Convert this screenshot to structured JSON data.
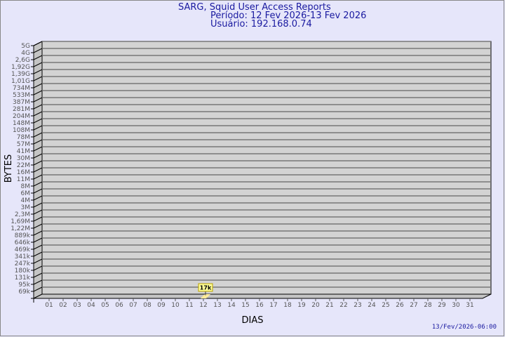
{
  "title": {
    "line1": "SARG, Squid User Access Reports",
    "line2": "Período: 12 Fev 2026-13 Fev 2026",
    "line3": "Usuário: 192.168.0.74"
  },
  "footer": "13/Fev/2026-06:00",
  "colors": {
    "background": "#e6e6fa",
    "plot": "#d3d3d3",
    "bar": "#ffeb99",
    "label_box": "#ffff99",
    "title": "#1a1aa0"
  },
  "chart_data": {
    "type": "bar",
    "xlabel": "DIAS",
    "ylabel": "BYTES",
    "categories": [
      "01",
      "02",
      "03",
      "04",
      "05",
      "06",
      "07",
      "08",
      "09",
      "10",
      "11",
      "12",
      "13",
      "14",
      "15",
      "16",
      "17",
      "18",
      "19",
      "20",
      "21",
      "22",
      "23",
      "24",
      "25",
      "26",
      "27",
      "28",
      "29",
      "30",
      "31"
    ],
    "values": [
      0,
      0,
      0,
      0,
      0,
      0,
      0,
      0,
      0,
      0,
      0,
      17000,
      0,
      0,
      0,
      0,
      0,
      0,
      0,
      0,
      0,
      0,
      0,
      0,
      0,
      0,
      0,
      0,
      0,
      0,
      0
    ],
    "data_labels": {
      "12": "17k"
    },
    "y_tick_labels": [
      "69k",
      "95k",
      "131k",
      "180k",
      "247k",
      "341k",
      "469k",
      "646k",
      "889k",
      "1,22M",
      "1,69M",
      "2,3M",
      "3M",
      "4M",
      "6M",
      "8M",
      "11M",
      "16M",
      "22M",
      "30M",
      "41M",
      "57M",
      "78M",
      "108M",
      "148M",
      "204M",
      "281M",
      "387M",
      "533M",
      "734M",
      "1,01G",
      "1,39G",
      "1,92G",
      "2,6G",
      "4G",
      "5G"
    ],
    "y_scale": "log",
    "grid": true,
    "legend": "none"
  }
}
